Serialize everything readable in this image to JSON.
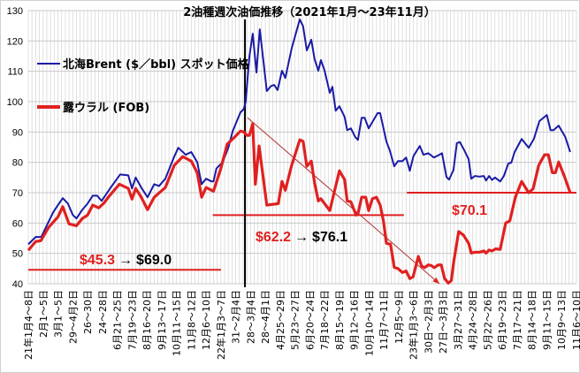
{
  "chart_data": {
    "type": "line",
    "title": "2油種週次油価推移（2021年1月～23年11月）",
    "xlabel": "",
    "ylabel": "",
    "x_unit": "week index from 2021-01-04",
    "xlim": [
      0,
      148
    ],
    "ylim": [
      40,
      130
    ],
    "yticks": [
      40,
      50,
      60,
      70,
      80,
      90,
      100,
      110,
      120,
      130
    ],
    "grid": true,
    "legend_position": "top-left",
    "x_tick_labels": [
      "21年1月4～8日",
      "2月1～5日",
      "3月1～5日",
      "29～4月2日",
      "26～30日",
      "24～28日",
      "6月21～25日",
      "7月19～23日",
      "8月16～20日",
      "9月13～17日",
      "10月11～15日",
      "11月8～12日",
      "12月6～10日",
      "22年1月3～7日",
      "31～2月4日",
      "28～3月4日",
      "28～4月1日",
      "4月25～29日",
      "5月23～27日",
      "6月20～24日",
      "7月18～22日",
      "8月15～19日",
      "9月12～16日",
      "10月10～14日",
      "11月7～11日",
      "12月5～9日",
      "23年1月3～6日",
      "30日～2月3日",
      "27日～3月3日",
      "3月27～31日",
      "4月24～28日",
      "5月22～26日",
      "6月19～23日",
      "7月17～21日",
      "8月14～18日",
      "9月11～15日",
      "10月9～13日",
      "11月6～10日"
    ],
    "series": [
      {
        "name": "北海Brent ($／bbl) スポット価格",
        "color": "#1a1aa6",
        "points": [
          [
            0,
            53
          ],
          [
            2,
            55.4
          ],
          [
            3.5,
            55.4
          ],
          [
            6.7,
            63.5
          ],
          [
            8,
            65.9
          ],
          [
            9.3,
            68.2
          ],
          [
            10.7,
            66.4
          ],
          [
            12,
            62.7
          ],
          [
            13,
            61.5
          ],
          [
            14.6,
            64.4
          ],
          [
            16,
            66.4
          ],
          [
            17.4,
            69
          ],
          [
            18.6,
            69
          ],
          [
            19.8,
            67.3
          ],
          [
            22.6,
            72.3
          ],
          [
            24.8,
            76
          ],
          [
            27,
            75.7
          ],
          [
            28,
            71.4
          ],
          [
            29,
            75
          ],
          [
            30.5,
            71.7
          ],
          [
            32.2,
            68.5
          ],
          [
            34,
            72.8
          ],
          [
            35.3,
            72.2
          ],
          [
            37,
            74.6
          ],
          [
            39.4,
            81.9
          ],
          [
            40.5,
            84.8
          ],
          [
            42.5,
            82.5
          ],
          [
            44,
            83.4
          ],
          [
            45.6,
            80.1
          ],
          [
            46.8,
            72.8
          ],
          [
            48,
            74.6
          ],
          [
            49.5,
            73.7
          ],
          [
            50,
            73.7
          ],
          [
            50.8,
            78
          ],
          [
            52.5,
            80.1
          ],
          [
            54,
            84.8
          ],
          [
            55.2,
            90.3
          ],
          [
            57.3,
            96.5
          ],
          [
            58.2,
            97.6
          ],
          [
            58.7,
            100
          ],
          [
            59.7,
            115
          ],
          [
            60.6,
            122.4
          ],
          [
            61.6,
            109.6
          ],
          [
            62.5,
            123.8
          ],
          [
            64.4,
            103.5
          ],
          [
            65.6,
            105.2
          ],
          [
            66.4,
            105.5
          ],
          [
            67.3,
            103.8
          ],
          [
            68.5,
            110.2
          ],
          [
            69.4,
            107.8
          ],
          [
            71.1,
            117.5
          ],
          [
            73.3,
            127.1
          ],
          [
            74.2,
            124.8
          ],
          [
            75.2,
            116.9
          ],
          [
            76.4,
            120.4
          ],
          [
            77.3,
            114
          ],
          [
            78.3,
            110.2
          ],
          [
            79,
            113.7
          ],
          [
            80,
            110.2
          ],
          [
            81.4,
            102.9
          ],
          [
            82.1,
            104.9
          ],
          [
            83,
            97
          ],
          [
            84,
            98.5
          ],
          [
            85.4,
            95
          ],
          [
            86.1,
            90.6
          ],
          [
            87.1,
            91.2
          ],
          [
            88.3,
            88.3
          ],
          [
            89,
            87.4
          ],
          [
            90,
            94.7
          ],
          [
            90.8,
            94.7
          ],
          [
            91.9,
            91.2
          ],
          [
            94.3,
            96.2
          ],
          [
            95,
            96.2
          ],
          [
            96.7,
            86.8
          ],
          [
            97.6,
            83.9
          ],
          [
            98.8,
            78.7
          ],
          [
            99.8,
            80.4
          ],
          [
            101,
            80.4
          ],
          [
            102,
            81.6
          ],
          [
            103,
            77.2
          ],
          [
            104,
            82.1
          ],
          [
            105.7,
            85.4
          ],
          [
            106.7,
            82.5
          ],
          [
            108,
            83
          ],
          [
            109.5,
            81.6
          ],
          [
            110.7,
            82.3
          ],
          [
            111.7,
            83
          ],
          [
            112.9,
            75.2
          ],
          [
            113.6,
            74.3
          ],
          [
            114.8,
            77.5
          ],
          [
            115.7,
            86.3
          ],
          [
            116.5,
            86.7
          ],
          [
            117.7,
            84
          ],
          [
            118.9,
            81
          ],
          [
            119.6,
            74.6
          ],
          [
            120.6,
            75.5
          ],
          [
            121.8,
            75.3
          ],
          [
            123,
            75.5
          ],
          [
            123.6,
            74
          ],
          [
            124.4,
            75.5
          ],
          [
            125.2,
            74.2
          ],
          [
            126,
            75
          ],
          [
            127.4,
            73.7
          ],
          [
            128.4,
            75.5
          ],
          [
            129.6,
            79.6
          ],
          [
            130.4,
            79.9
          ],
          [
            131.3,
            83.4
          ],
          [
            133.2,
            87.7
          ],
          [
            135.1,
            84.8
          ],
          [
            136.5,
            87.7
          ],
          [
            138,
            93.6
          ],
          [
            140,
            95.6
          ],
          [
            141,
            90.6
          ],
          [
            141.8,
            90.6
          ],
          [
            143.2,
            92.1
          ],
          [
            145,
            88.3
          ],
          [
            146.3,
            83.4
          ]
        ]
      },
      {
        "name": "露ウラル (FOB)",
        "color": "#e02020",
        "points": [
          [
            0,
            51
          ],
          [
            2,
            53.9
          ],
          [
            3.4,
            54.2
          ],
          [
            5.5,
            58.6
          ],
          [
            8,
            62
          ],
          [
            9.3,
            65.4
          ],
          [
            11,
            59.7
          ],
          [
            13,
            59.1
          ],
          [
            14.6,
            61.5
          ],
          [
            16,
            62.6
          ],
          [
            17.4,
            65.9
          ],
          [
            19,
            65
          ],
          [
            20.3,
            66.4
          ],
          [
            21.8,
            68.8
          ],
          [
            24.6,
            72.8
          ],
          [
            27,
            71.4
          ],
          [
            28,
            67.9
          ],
          [
            29,
            71.4
          ],
          [
            30.5,
            68.5
          ],
          [
            32.2,
            64.4
          ],
          [
            34,
            68.5
          ],
          [
            35.3,
            69.9
          ],
          [
            37,
            71.7
          ],
          [
            39.4,
            79
          ],
          [
            41.7,
            81.9
          ],
          [
            44,
            80.4
          ],
          [
            45.6,
            76.6
          ],
          [
            46.8,
            68.5
          ],
          [
            48,
            71.7
          ],
          [
            50,
            70.5
          ],
          [
            52,
            78
          ],
          [
            53.7,
            86
          ],
          [
            55.2,
            87.7
          ],
          [
            57.3,
            90.3
          ],
          [
            58.2,
            90
          ],
          [
            59,
            88.9
          ],
          [
            59.7,
            88.9
          ],
          [
            60.6,
            92.7
          ],
          [
            61.3,
            72.8
          ],
          [
            62.3,
            85.4
          ],
          [
            64.4,
            65.9
          ],
          [
            67.5,
            66.4
          ],
          [
            68.5,
            73.7
          ],
          [
            69.4,
            70.8
          ],
          [
            71.1,
            79
          ],
          [
            73.3,
            87.4
          ],
          [
            74.2,
            86.9
          ],
          [
            75.2,
            78.7
          ],
          [
            76.4,
            80.4
          ],
          [
            77.3,
            73.2
          ],
          [
            78.3,
            67.3
          ],
          [
            79,
            68
          ],
          [
            80,
            66.4
          ],
          [
            81.4,
            64.1
          ],
          [
            84,
            77.2
          ],
          [
            85.4,
            74.3
          ],
          [
            86.1,
            67.3
          ],
          [
            87.1,
            67
          ],
          [
            88.5,
            62.6
          ],
          [
            89,
            63
          ],
          [
            90,
            68.5
          ],
          [
            91.1,
            68.5
          ],
          [
            91.9,
            64.1
          ],
          [
            92.9,
            68
          ],
          [
            94,
            68.5
          ],
          [
            95,
            65.9
          ],
          [
            95.9,
            60.6
          ],
          [
            96.7,
            53.3
          ],
          [
            97.8,
            53
          ],
          [
            98.8,
            45.4
          ],
          [
            99.8,
            45
          ],
          [
            101,
            43.7
          ],
          [
            102,
            44.2
          ],
          [
            103,
            41.7
          ],
          [
            103.9,
            42.3
          ],
          [
            105.3,
            49
          ],
          [
            106.2,
            45.8
          ],
          [
            107,
            45.3
          ],
          [
            108,
            46.2
          ],
          [
            108.8,
            46
          ],
          [
            109.6,
            45.3
          ],
          [
            110.7,
            46.2
          ],
          [
            111.5,
            46.2
          ],
          [
            112.4,
            41.7
          ],
          [
            113.4,
            40.2
          ],
          [
            114.2,
            41
          ],
          [
            114.9,
            47.5
          ],
          [
            116.2,
            57.2
          ],
          [
            117.5,
            56
          ],
          [
            118.9,
            53.3
          ],
          [
            119.6,
            50.1
          ],
          [
            120.6,
            50.4
          ],
          [
            121.8,
            50.4
          ],
          [
            123,
            50.8
          ],
          [
            123.6,
            50.1
          ],
          [
            124.4,
            51.1
          ],
          [
            125.2,
            50.8
          ],
          [
            126.2,
            51.5
          ],
          [
            127.4,
            51.3
          ],
          [
            128.9,
            60
          ],
          [
            130,
            60.7
          ],
          [
            131.5,
            68.5
          ],
          [
            133.2,
            73.7
          ],
          [
            135.1,
            70
          ],
          [
            136.3,
            71.3
          ],
          [
            137.8,
            79
          ],
          [
            139.4,
            82.5
          ],
          [
            140.4,
            82.5
          ],
          [
            141.5,
            76.6
          ],
          [
            142.3,
            76.6
          ],
          [
            143.2,
            80.1
          ],
          [
            144.8,
            75.2
          ],
          [
            146.3,
            70
          ]
        ]
      }
    ],
    "reference_lines": [
      {
        "name": "avg-2021",
        "value": 44.6,
        "x_from": 0,
        "x_to": 52,
        "color": "#e02020"
      },
      {
        "name": "avg-2022",
        "value": 62.6,
        "x_from": 49.8,
        "x_to": 101.4,
        "color": "#e02020"
      },
      {
        "name": "avg-2023",
        "value": 70,
        "x_from": 102.2,
        "x_to": 148,
        "color": "#e02020"
      }
    ],
    "vertical_marker_week": 58.5,
    "trend_arrow": {
      "from": [
        59.2,
        94.7
      ],
      "to": [
        111,
        40
      ],
      "color": "#b03030"
    },
    "annotations": [
      {
        "red": "$45.3",
        "arrow": "→",
        "black": "$69.0"
      },
      {
        "red": "$62.2",
        "arrow": "→",
        "black": "$76.1"
      },
      {
        "red": "$70.1"
      }
    ]
  }
}
